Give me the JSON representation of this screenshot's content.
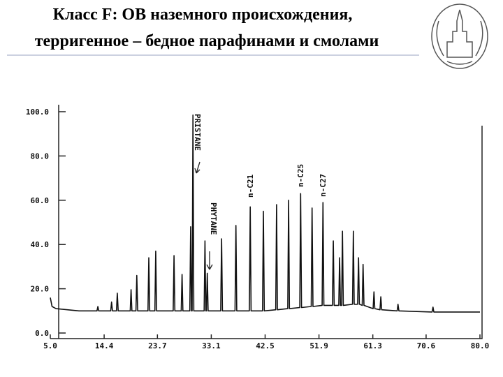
{
  "header": {
    "title": [
      "Класс F: ОВ наземного происхождения,",
      "терригенное – бедное парафинами и смолами"
    ]
  },
  "chart_data": {
    "type": "line",
    "color": "#111111",
    "x": [
      5.0,
      5.3,
      6.0,
      10.0,
      13.15,
      13.3,
      13.45,
      15.55,
      15.7,
      15.85,
      16.55,
      16.7,
      16.85,
      18.95,
      19.1,
      19.25,
      19.95,
      20.1,
      20.25,
      22.05,
      22.2,
      22.35,
      23.25,
      23.4,
      23.55,
      26.45,
      26.6,
      26.75,
      27.85,
      28.0,
      28.15,
      29.35,
      29.5,
      29.65,
      29.75,
      29.9,
      30.05,
      31.85,
      32.0,
      32.15,
      32.25,
      32.4,
      32.55,
      34.75,
      34.9,
      35.05,
      37.25,
      37.4,
      37.55,
      39.75,
      39.9,
      40.05,
      42.05,
      42.2,
      42.35,
      44.35,
      44.5,
      44.65,
      46.45,
      46.6,
      46.75,
      48.55,
      48.7,
      48.85,
      50.55,
      50.7,
      50.85,
      52.45,
      52.6,
      52.75,
      54.25,
      54.4,
      54.55,
      55.35,
      55.5,
      55.65,
      55.85,
      56.0,
      56.15,
      57.75,
      57.9,
      58.05,
      58.65,
      58.8,
      58.95,
      59.45,
      59.6,
      59.75,
      61.35,
      61.5,
      61.65,
      62.55,
      62.7,
      62.85,
      65.55,
      65.7,
      65.85,
      71.65,
      71.8,
      71.95,
      80.0
    ],
    "values": [
      16,
      12,
      11,
      10,
      10,
      12,
      10,
      10,
      14,
      10,
      10,
      18,
      10,
      10,
      19.6,
      10,
      10,
      26,
      10,
      10,
      34,
      10,
      10,
      37,
      10,
      10,
      35,
      10,
      10,
      26.5,
      10,
      10,
      48,
      10,
      10,
      98.5,
      10,
      10,
      41.6,
      10,
      10,
      27,
      10,
      10,
      42.6,
      10,
      10,
      48.6,
      10,
      10,
      57,
      10,
      10,
      55,
      10,
      10.5,
      58,
      10.5,
      11,
      60,
      11,
      11.5,
      63,
      11.5,
      12,
      56.5,
      12,
      12.5,
      59,
      12.5,
      12.5,
      41.6,
      12.5,
      12.5,
      34,
      12.5,
      12.5,
      46,
      12.5,
      13,
      46,
      13,
      13,
      34,
      13,
      12.5,
      31,
      12.5,
      11,
      18.6,
      11,
      10.5,
      16.4,
      10.5,
      10,
      13,
      10,
      9.5,
      11.7,
      9.5,
      9.5
    ],
    "xlim": [
      5,
      80
    ],
    "xticks": [
      {
        "value": 5,
        "label": "5.0"
      },
      14.4,
      23.7,
      33.1,
      42.5,
      51.9,
      61.3,
      70.6,
      {
        "value": 80,
        "label": "80.0"
      }
    ],
    "ylim": [
      0,
      100
    ],
    "yticks": [
      {
        "value": 0,
        "label": "0.0"
      },
      {
        "value": 20,
        "label": "20.0"
      },
      {
        "value": 40,
        "label": "40.0"
      },
      {
        "value": 60,
        "label": "60.0"
      },
      {
        "value": 80,
        "label": "80.0"
      },
      {
        "value": 100,
        "label": "100.0"
      }
    ],
    "annotations": [
      "PRISTANE",
      "PHYTANE",
      "n-C21",
      "n-C25",
      "n-C27"
    ]
  }
}
